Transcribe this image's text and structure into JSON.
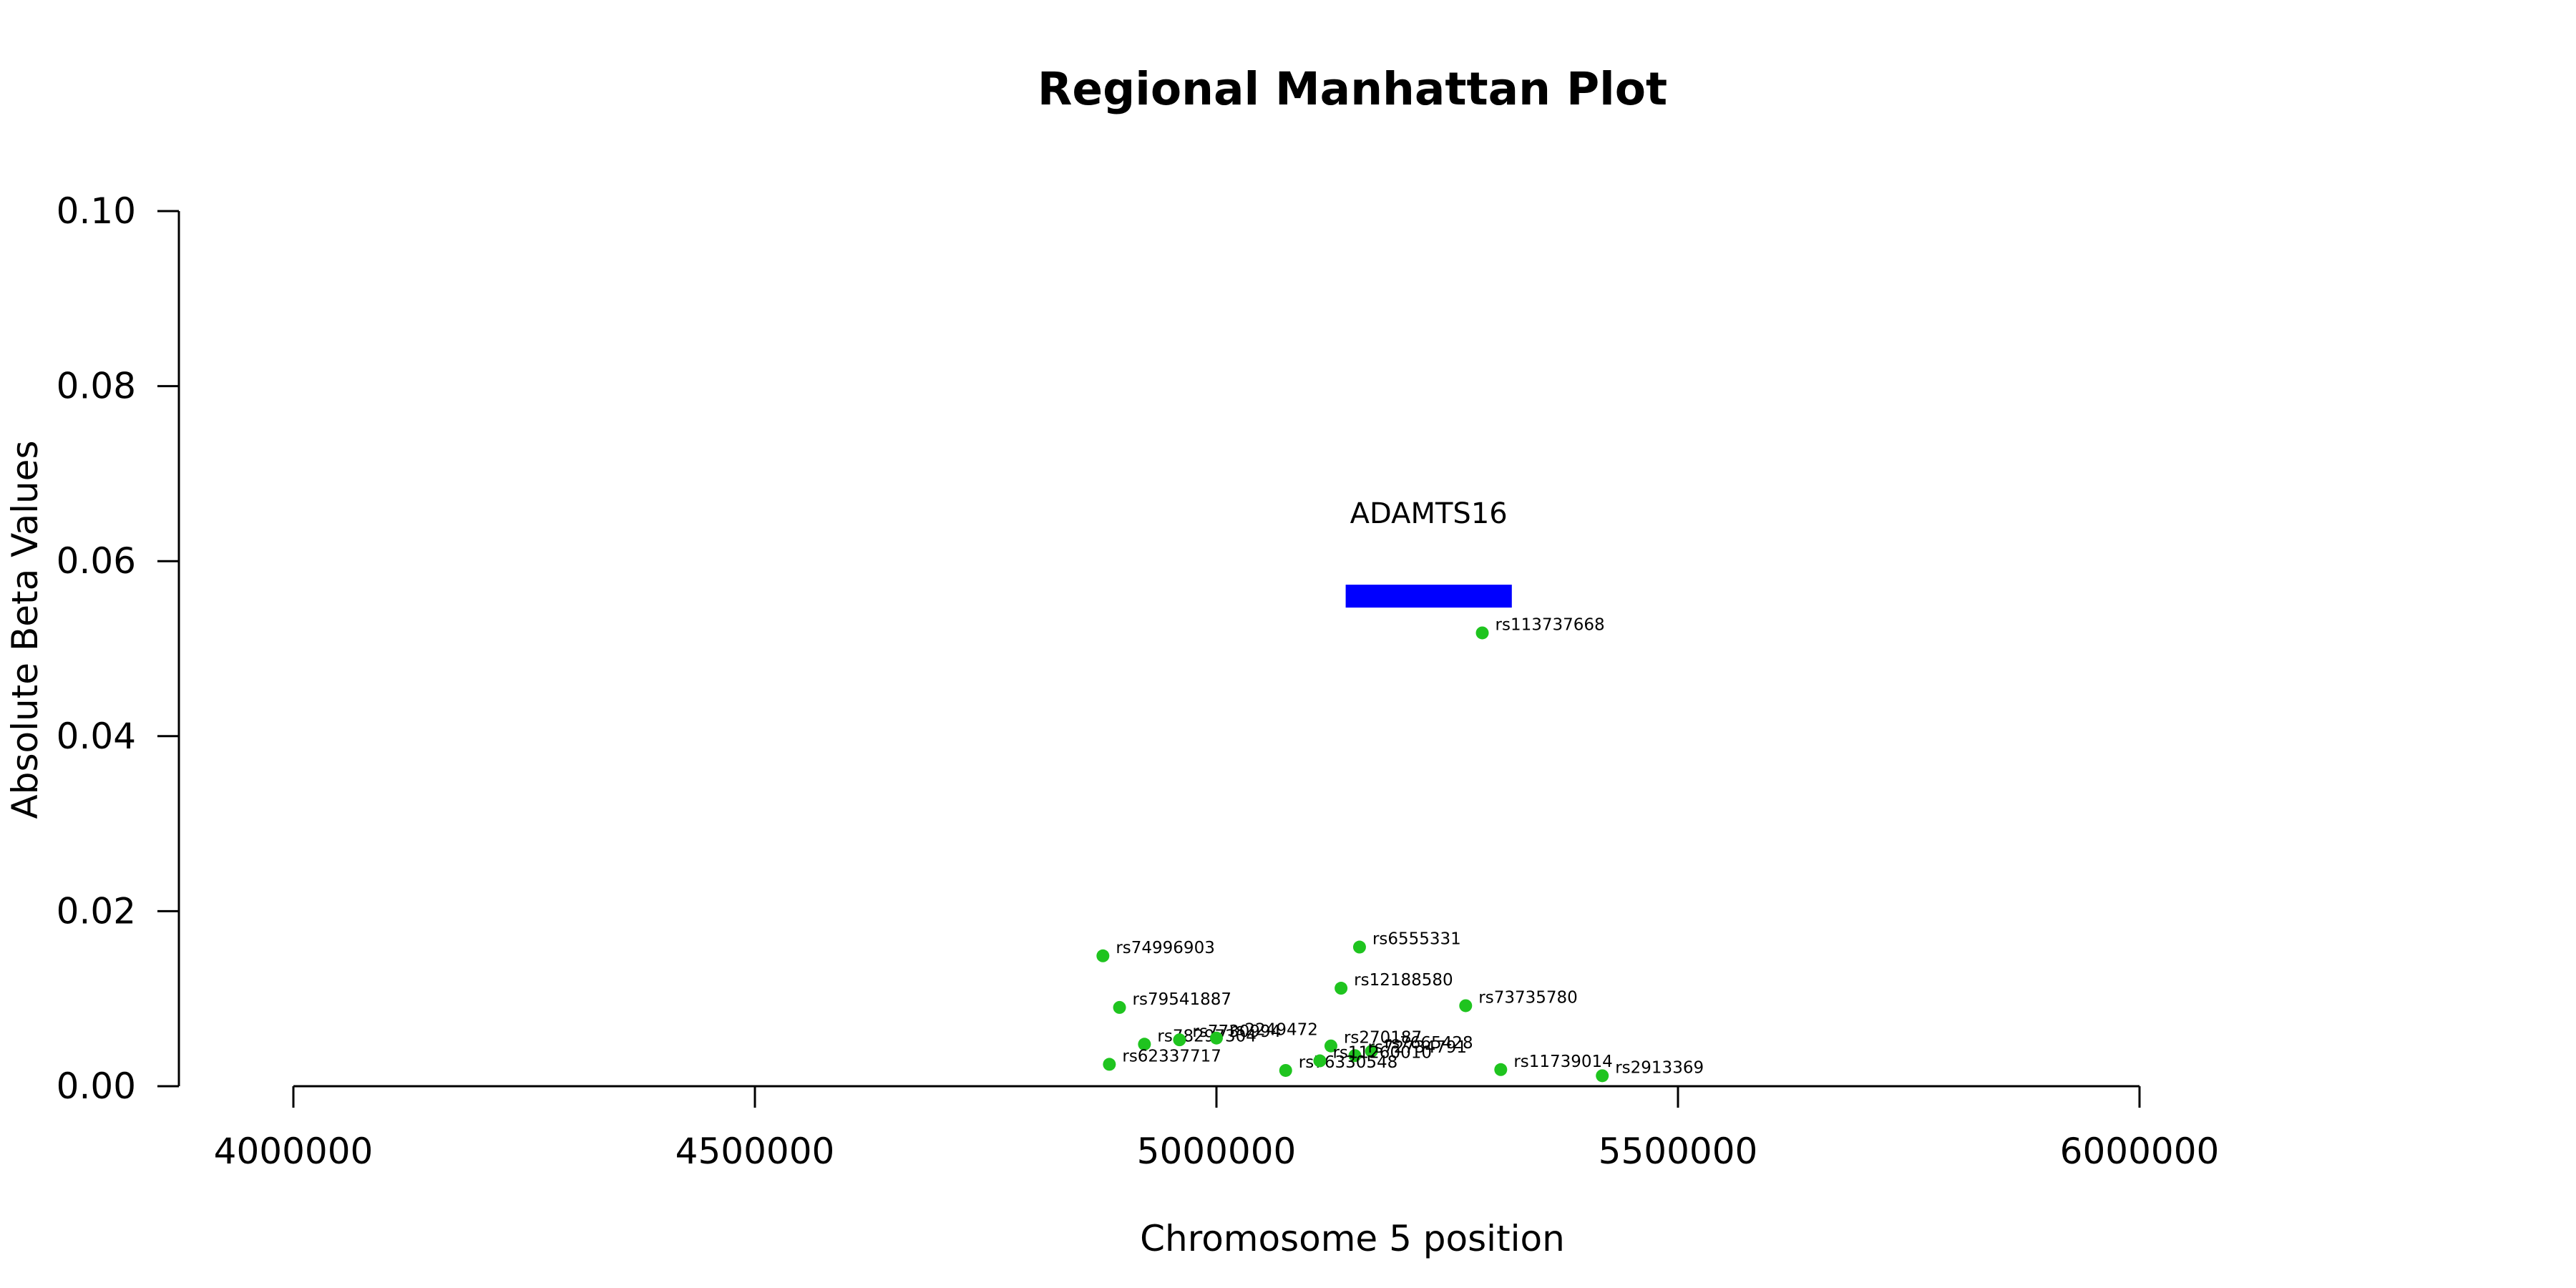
{
  "chart_data": {
    "type": "scatter",
    "title": "Regional Manhattan Plot",
    "xlabel": "Chromosome 5 position",
    "ylabel": "Absolute Beta Values",
    "xlim": [
      4000000,
      6000000
    ],
    "ylim": [
      0,
      0.1
    ],
    "x_ticks": [
      4000000,
      4500000,
      5000000,
      5500000,
      6000000
    ],
    "y_ticks": [
      0.0,
      0.02,
      0.04,
      0.06,
      0.08,
      0.1
    ],
    "x_tick_labels": [
      "4000000",
      "4500000",
      "5000000",
      "5500000",
      "6000000"
    ],
    "y_tick_labels": [
      "0.00",
      "0.02",
      "0.04",
      "0.06",
      "0.08",
      "0.10"
    ],
    "grid": false,
    "point_color": "#1fc41f",
    "gene_color": "#0000ff",
    "genes": [
      {
        "name": "ADAMTS16",
        "start": 5140000,
        "end": 5320000,
        "y": 0.056
      }
    ],
    "points": [
      {
        "id": "rs113737668",
        "x": 5288000,
        "y": 0.0518
      },
      {
        "id": "rs74996903",
        "x": 4877000,
        "y": 0.0149
      },
      {
        "id": "rs6555331",
        "x": 5155000,
        "y": 0.0159
      },
      {
        "id": "rs12188580",
        "x": 5135000,
        "y": 0.0112
      },
      {
        "id": "rs79541887",
        "x": 4895000,
        "y": 0.009
      },
      {
        "id": "rs73735780",
        "x": 5270000,
        "y": 0.0092
      },
      {
        "id": "rs78297304",
        "x": 4922000,
        "y": 0.0048
      },
      {
        "id": "rs7730994",
        "x": 4960000,
        "y": 0.0053
      },
      {
        "id": "rs2249472",
        "x": 5000000,
        "y": 0.0055
      },
      {
        "id": "rs270187",
        "x": 5124000,
        "y": 0.0046
      },
      {
        "id": "rs7665428",
        "x": 5168000,
        "y": 0.004
      },
      {
        "id": "rs72734791",
        "x": 5150000,
        "y": 0.0035
      },
      {
        "id": "rs62337717",
        "x": 4884000,
        "y": 0.0025
      },
      {
        "id": "rs76330548",
        "x": 5075000,
        "y": 0.0018
      },
      {
        "id": "rs11260010",
        "x": 5112000,
        "y": 0.0029
      },
      {
        "id": "rs11739014",
        "x": 5308000,
        "y": 0.0019
      },
      {
        "id": "rs2913369",
        "x": 5418000,
        "y": 0.0012
      }
    ]
  }
}
